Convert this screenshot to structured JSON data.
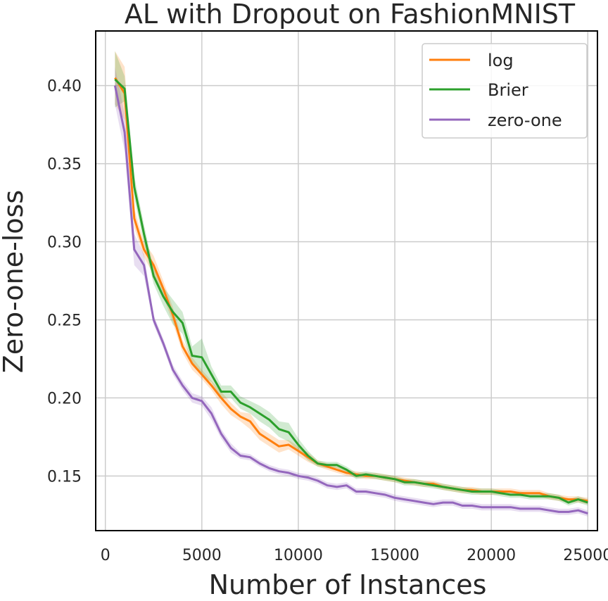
{
  "chart_data": {
    "type": "line",
    "title": "AL with Dropout on FashionMNIST",
    "xlabel": "Number of Instances",
    "ylabel": "Zero-one-loss",
    "xlim": [
      -500,
      25500
    ],
    "ylim": [
      0.115,
      0.435
    ],
    "xticks": [
      0,
      5000,
      10000,
      15000,
      20000,
      25000
    ],
    "xtick_labels": [
      "0",
      "5000",
      "10000",
      "15000",
      "20000",
      "25000"
    ],
    "yticks": [
      0.15,
      0.2,
      0.25,
      0.3,
      0.35,
      0.4
    ],
    "ytick_labels": [
      "0.15",
      "0.20",
      "0.25",
      "0.30",
      "0.35",
      "0.40"
    ],
    "grid": true,
    "legend_position": "top-right",
    "colors": {
      "log": "#ff7f0e",
      "Brier": "#2ca02c",
      "zero-one": "#9467bd"
    },
    "x": [
      500,
      1000,
      1500,
      2000,
      2500,
      3000,
      3500,
      4000,
      4500,
      5000,
      5500,
      6000,
      6500,
      7000,
      7500,
      8000,
      8500,
      9000,
      9500,
      10000,
      10500,
      11000,
      11500,
      12000,
      12500,
      13000,
      13500,
      14000,
      14500,
      15000,
      15500,
      16000,
      16500,
      17000,
      17500,
      18000,
      18500,
      19000,
      19500,
      20000,
      20500,
      21000,
      21500,
      22000,
      22500,
      23000,
      23500,
      24000,
      24500,
      25000
    ],
    "series": [
      {
        "name": "log",
        "values": [
          0.405,
          0.395,
          0.315,
          0.295,
          0.285,
          0.27,
          0.253,
          0.233,
          0.222,
          0.215,
          0.208,
          0.2,
          0.193,
          0.188,
          0.185,
          0.177,
          0.173,
          0.169,
          0.17,
          0.166,
          0.162,
          0.158,
          0.156,
          0.154,
          0.152,
          0.151,
          0.15,
          0.15,
          0.149,
          0.148,
          0.147,
          0.146,
          0.145,
          0.145,
          0.143,
          0.142,
          0.141,
          0.141,
          0.14,
          0.14,
          0.14,
          0.14,
          0.139,
          0.139,
          0.139,
          0.137,
          0.136,
          0.135,
          0.135,
          0.134
        ],
        "band": [
          0.017,
          0.017,
          0.006,
          0.005,
          0.006,
          0.005,
          0.005,
          0.004,
          0.004,
          0.003,
          0.003,
          0.004,
          0.004,
          0.003,
          0.005,
          0.004,
          0.004,
          0.004,
          0.003,
          0.003,
          0.003,
          0.002,
          0.002,
          0.002,
          0.002,
          0.002,
          0.002,
          0.002,
          0.002,
          0.002,
          0.002,
          0.002,
          0.002,
          0.002,
          0.002,
          0.002,
          0.002,
          0.002,
          0.002,
          0.002,
          0.002,
          0.002,
          0.002,
          0.002,
          0.002,
          0.002,
          0.002,
          0.002,
          0.002,
          0.002
        ]
      },
      {
        "name": "Brier",
        "values": [
          0.404,
          0.398,
          0.335,
          0.305,
          0.278,
          0.265,
          0.255,
          0.248,
          0.227,
          0.226,
          0.215,
          0.204,
          0.204,
          0.197,
          0.194,
          0.19,
          0.186,
          0.18,
          0.178,
          0.17,
          0.163,
          0.158,
          0.157,
          0.157,
          0.154,
          0.15,
          0.151,
          0.15,
          0.149,
          0.148,
          0.146,
          0.146,
          0.145,
          0.144,
          0.143,
          0.142,
          0.141,
          0.14,
          0.14,
          0.14,
          0.139,
          0.138,
          0.138,
          0.137,
          0.137,
          0.137,
          0.136,
          0.133,
          0.135,
          0.133
        ],
        "band": [
          0.018,
          0.008,
          0.007,
          0.006,
          0.005,
          0.006,
          0.008,
          0.007,
          0.006,
          0.012,
          0.005,
          0.004,
          0.004,
          0.004,
          0.004,
          0.005,
          0.005,
          0.005,
          0.006,
          0.004,
          0.003,
          0.002,
          0.002,
          0.002,
          0.002,
          0.002,
          0.002,
          0.002,
          0.002,
          0.002,
          0.002,
          0.002,
          0.002,
          0.002,
          0.002,
          0.002,
          0.002,
          0.002,
          0.002,
          0.002,
          0.002,
          0.002,
          0.002,
          0.002,
          0.002,
          0.002,
          0.002,
          0.002,
          0.002,
          0.002
        ]
      },
      {
        "name": "zero-one",
        "values": [
          0.4,
          0.37,
          0.295,
          0.285,
          0.25,
          0.235,
          0.218,
          0.208,
          0.2,
          0.198,
          0.19,
          0.177,
          0.168,
          0.163,
          0.162,
          0.158,
          0.155,
          0.153,
          0.152,
          0.15,
          0.149,
          0.147,
          0.144,
          0.143,
          0.144,
          0.14,
          0.14,
          0.139,
          0.138,
          0.136,
          0.135,
          0.134,
          0.133,
          0.132,
          0.133,
          0.133,
          0.131,
          0.131,
          0.13,
          0.13,
          0.13,
          0.13,
          0.129,
          0.129,
          0.129,
          0.128,
          0.127,
          0.127,
          0.128,
          0.126
        ],
        "band": [
          0.012,
          0.012,
          0.01,
          0.007,
          0.003,
          0.003,
          0.003,
          0.003,
          0.003,
          0.003,
          0.004,
          0.003,
          0.003,
          0.002,
          0.002,
          0.002,
          0.002,
          0.002,
          0.002,
          0.002,
          0.002,
          0.002,
          0.002,
          0.002,
          0.002,
          0.002,
          0.002,
          0.002,
          0.002,
          0.002,
          0.002,
          0.002,
          0.002,
          0.002,
          0.002,
          0.002,
          0.002,
          0.002,
          0.002,
          0.002,
          0.002,
          0.002,
          0.002,
          0.002,
          0.002,
          0.002,
          0.002,
          0.002,
          0.002,
          0.002
        ]
      }
    ]
  }
}
